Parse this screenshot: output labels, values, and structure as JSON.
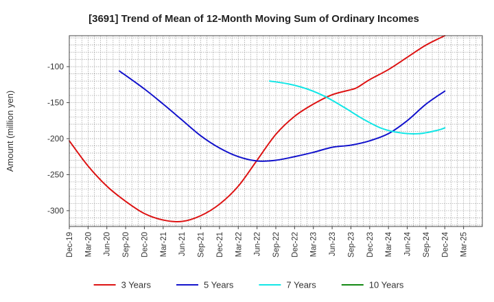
{
  "chart_data": {
    "type": "line",
    "title": "[3691]  Trend of Mean of 12-Month Moving Sum of Ordinary Incomes",
    "xlabel": "",
    "ylabel": "Amount (million yen)",
    "ylim": [
      -322,
      -57
    ],
    "yticks": [
      -100,
      -150,
      -200,
      -250,
      -300
    ],
    "ytick_labels": [
      "-100",
      "-150",
      "-200",
      "-250",
      "-300"
    ],
    "xlim": [
      0,
      66
    ],
    "grid": true,
    "legend_position": "bottom",
    "x_ticks": [
      {
        "x": 0,
        "label": "Dec-19"
      },
      {
        "x": 3,
        "label": "Mar-20"
      },
      {
        "x": 6,
        "label": "Jun-20"
      },
      {
        "x": 9,
        "label": "Sep-20"
      },
      {
        "x": 12,
        "label": "Dec-20"
      },
      {
        "x": 15,
        "label": "Mar-21"
      },
      {
        "x": 18,
        "label": "Jun-21"
      },
      {
        "x": 21,
        "label": "Sep-21"
      },
      {
        "x": 24,
        "label": "Dec-21"
      },
      {
        "x": 27,
        "label": "Mar-22"
      },
      {
        "x": 30,
        "label": "Jun-22"
      },
      {
        "x": 33,
        "label": "Sep-22"
      },
      {
        "x": 36,
        "label": "Dec-22"
      },
      {
        "x": 39,
        "label": "Mar-23"
      },
      {
        "x": 42,
        "label": "Jun-23"
      },
      {
        "x": 45,
        "label": "Sep-23"
      },
      {
        "x": 48,
        "label": "Dec-23"
      },
      {
        "x": 51,
        "label": "Mar-24"
      },
      {
        "x": 54,
        "label": "Jun-24"
      },
      {
        "x": 57,
        "label": "Sep-24"
      },
      {
        "x": 60,
        "label": "Dec-24"
      },
      {
        "x": 63,
        "label": "Mar-25"
      }
    ],
    "series": [
      {
        "name": "3 Years",
        "color": "#dd1111",
        "points": [
          [
            0,
            -203
          ],
          [
            3,
            -238
          ],
          [
            6,
            -266
          ],
          [
            9,
            -287
          ],
          [
            12,
            -304
          ],
          [
            15,
            -313
          ],
          [
            18,
            -315
          ],
          [
            21,
            -307
          ],
          [
            24,
            -291
          ],
          [
            27,
            -266
          ],
          [
            30,
            -230
          ],
          [
            33,
            -194
          ],
          [
            36,
            -169
          ],
          [
            39,
            -152
          ],
          [
            42,
            -139
          ],
          [
            45,
            -132
          ],
          [
            46,
            -129
          ],
          [
            48,
            -118
          ],
          [
            51,
            -104
          ],
          [
            54,
            -87
          ],
          [
            57,
            -70
          ],
          [
            60,
            -57
          ]
        ]
      },
      {
        "name": "5 Years",
        "color": "#1111cc",
        "points": [
          [
            8,
            -106
          ],
          [
            12,
            -131
          ],
          [
            15,
            -152
          ],
          [
            18,
            -174
          ],
          [
            21,
            -196
          ],
          [
            24,
            -213
          ],
          [
            27,
            -225
          ],
          [
            30,
            -231
          ],
          [
            33,
            -230
          ],
          [
            36,
            -225
          ],
          [
            39,
            -219
          ],
          [
            42,
            -212
          ],
          [
            45,
            -209
          ],
          [
            48,
            -203
          ],
          [
            51,
            -193
          ],
          [
            54,
            -175
          ],
          [
            57,
            -152
          ],
          [
            60,
            -134
          ]
        ]
      },
      {
        "name": "7 Years",
        "color": "#11e6e6",
        "points": [
          [
            32,
            -120
          ],
          [
            35,
            -124
          ],
          [
            38,
            -131
          ],
          [
            41,
            -142
          ],
          [
            44,
            -157
          ],
          [
            47,
            -173
          ],
          [
            50,
            -186
          ],
          [
            53,
            -192
          ],
          [
            56,
            -193
          ],
          [
            59,
            -188
          ],
          [
            60,
            -185
          ]
        ]
      },
      {
        "name": "10 Years",
        "color": "#118811",
        "points": []
      }
    ]
  }
}
